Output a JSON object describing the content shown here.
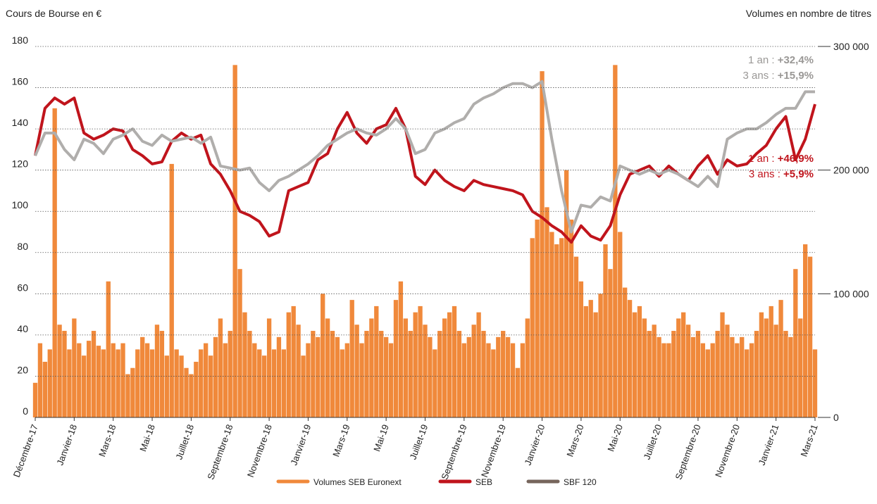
{
  "chart_data": {
    "type": "combo",
    "y_axis_title": "Cours de Bourse en €",
    "y2_axis_title": "Volumes en nombre de titres",
    "ylim": [
      0,
      180
    ],
    "yticks": [
      0,
      20,
      40,
      60,
      80,
      100,
      120,
      140,
      160,
      180
    ],
    "y2lim": [
      0,
      300000
    ],
    "y2ticks": [
      0,
      {
        "value": 100000,
        "label": "100 000"
      },
      {
        "value": 200000,
        "label": "200 000"
      },
      {
        "value": 300000,
        "label": "300 000"
      }
    ],
    "grid": true,
    "x_tick_labels": [
      "Décembre-17",
      "Janvier-18",
      "Mars-18",
      "Mai-18",
      "Juillet-18",
      "Septembre-18",
      "Novembre-18",
      "Janvier-19",
      "Mars-19",
      "Mai-19",
      "Juillet-19",
      "Septembre-19",
      "Novembre-19",
      "Janvier-20",
      "Mars-20",
      "Mai-20",
      "Juillet-20",
      "Septembre-20",
      "Novembre-20",
      "Janvier-21",
      "Mars-21"
    ],
    "series": [
      {
        "name": "Volumes SEB Euronext",
        "type": "bar",
        "axis": "y2",
        "color": "#f0893b",
        "values": [
          28000,
          60000,
          45000,
          55000,
          250000,
          75000,
          70000,
          55000,
          80000,
          60000,
          50000,
          62000,
          70000,
          58000,
          55000,
          110000,
          60000,
          55000,
          60000,
          35000,
          40000,
          55000,
          65000,
          60000,
          55000,
          75000,
          70000,
          50000,
          205000,
          55000,
          50000,
          40000,
          35000,
          45000,
          55000,
          60000,
          50000,
          65000,
          80000,
          60000,
          70000,
          285000,
          120000,
          85000,
          70000,
          60000,
          55000,
          50000,
          80000,
          55000,
          65000,
          55000,
          85000,
          90000,
          75000,
          50000,
          60000,
          70000,
          65000,
          100000,
          80000,
          70000,
          65000,
          55000,
          60000,
          95000,
          75000,
          60000,
          70000,
          80000,
          90000,
          70000,
          65000,
          60000,
          95000,
          110000,
          80000,
          70000,
          85000,
          90000,
          75000,
          65000,
          55000,
          70000,
          80000,
          85000,
          90000,
          70000,
          60000,
          65000,
          75000,
          85000,
          70000,
          60000,
          55000,
          65000,
          70000,
          65000,
          60000,
          40000,
          60000,
          80000,
          145000,
          160000,
          280000,
          170000,
          150000,
          140000,
          145000,
          200000,
          160000,
          130000,
          110000,
          90000,
          95000,
          85000,
          100000,
          140000,
          120000,
          285000,
          150000,
          105000,
          95000,
          85000,
          90000,
          80000,
          70000,
          75000,
          65000,
          60000,
          60000,
          70000,
          80000,
          85000,
          75000,
          65000,
          70000,
          60000,
          55000,
          60000,
          70000,
          85000,
          75000,
          65000,
          60000,
          65000,
          55000,
          60000,
          70000,
          85000,
          80000,
          90000,
          75000,
          95000,
          70000,
          65000,
          120000,
          80000,
          140000,
          130000,
          55000
        ]
      },
      {
        "name": "SEB",
        "type": "line",
        "color": "#c0141c",
        "legend_color": "#c0141c",
        "values": [
          127,
          150,
          155,
          152,
          155,
          138,
          135,
          137,
          140,
          139,
          130,
          127,
          123,
          124,
          134,
          138,
          135,
          137,
          123,
          118,
          110,
          100,
          98,
          95,
          88,
          90,
          110,
          112,
          114,
          125,
          128,
          140,
          148,
          138,
          133,
          140,
          142,
          150,
          140,
          117,
          113,
          120,
          115,
          112,
          110,
          115,
          113,
          112,
          111,
          110,
          108,
          100,
          97,
          93,
          90,
          85,
          93,
          88,
          86,
          93,
          108,
          118,
          120,
          122,
          117,
          122,
          118,
          115,
          122,
          127,
          118,
          125,
          122,
          123,
          128,
          132,
          140,
          146,
          125,
          135,
          152
        ]
      },
      {
        "name": "SBF 120",
        "type": "line",
        "color": "#b0aeac",
        "legend_color": "#76655c",
        "values": [
          127,
          138,
          138,
          130,
          125,
          135,
          133,
          128,
          135,
          137,
          140,
          134,
          132,
          137,
          134,
          135,
          136,
          133,
          136,
          122,
          121,
          120,
          121,
          114,
          110,
          115,
          117,
          120,
          123,
          127,
          132,
          135,
          138,
          140,
          138,
          137,
          140,
          145,
          140,
          128,
          130,
          138,
          140,
          143,
          145,
          152,
          155,
          157,
          160,
          162,
          162,
          160,
          163,
          135,
          110,
          90,
          103,
          102,
          107,
          105,
          122,
          120,
          118,
          120,
          118,
          120,
          118,
          115,
          112,
          117,
          112,
          135,
          138,
          140,
          140,
          143,
          147,
          150,
          150,
          158,
          158
        ]
      }
    ],
    "annotations": [
      {
        "prefix": "1 an : ",
        "value": "+32,4%",
        "color": "#9a9896"
      },
      {
        "prefix": "3 ans : ",
        "value": "+15,9%",
        "color": "#9a9896"
      },
      {
        "prefix": "1 an : ",
        "value": "+46,9%",
        "color": "#c0141c"
      },
      {
        "prefix": "3 ans : ",
        "value": "+5,9%",
        "color": "#c0141c"
      }
    ]
  }
}
